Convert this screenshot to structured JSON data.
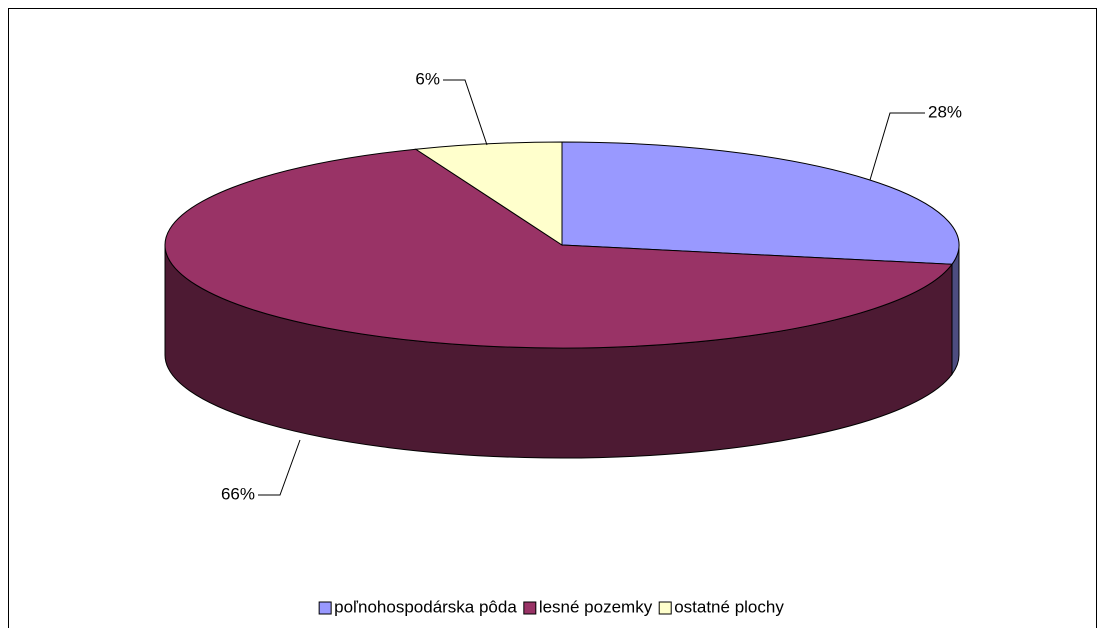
{
  "chart_data": {
    "type": "pie3d",
    "categories": [
      "poľnohospodárska pôda",
      "lesné pozemky",
      "ostatné plochy"
    ],
    "values": [
      28,
      66,
      6
    ],
    "value_labels": [
      "28%",
      "66%",
      "6%"
    ],
    "colors": [
      "#9999ff",
      "#993366",
      "#ffffcc"
    ],
    "legend": "bottom"
  }
}
